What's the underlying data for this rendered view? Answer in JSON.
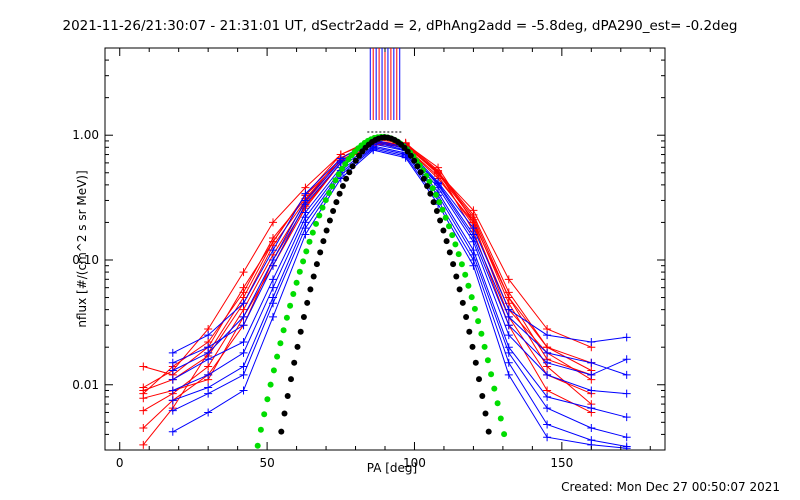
{
  "title": "2021-11-26/21:30:07 - 21:31:01 UT, dSectr2add = 2, dPhAng2add = -5.8deg, dPA290_est= -0.2deg",
  "footer": "Created: Mon Dec 27 00:50:07 2021",
  "chart_data": {
    "type": "line",
    "xlabel": "PA [deg]",
    "ylabel": "nflux [#/(cm^2 s sr MeV)]",
    "xlim": [
      -5,
      185
    ],
    "ylim": [
      0.003,
      5.0
    ],
    "yscale": "log",
    "x_ticks": [
      0,
      50,
      100,
      150
    ],
    "y_ticks": [
      {
        "value": 1.0,
        "label": "1.00"
      },
      {
        "value": 0.1,
        "label": "0.10"
      },
      {
        "value": 0.01,
        "label": "0.01"
      }
    ],
    "peak_markers": {
      "red_x": [
        86,
        88,
        90,
        92,
        94
      ],
      "blue_x": [
        85,
        87,
        89,
        91,
        93,
        95
      ]
    },
    "fit_curves": [
      {
        "name": "green fit",
        "color": "#00dd00",
        "peak": 0.97,
        "center": 89,
        "width": 27.5,
        "x_start": 27,
        "x_end": 143
      },
      {
        "name": "black fit",
        "color": "#000000",
        "peak": 0.96,
        "center": 90,
        "width": 23.5,
        "x_start": 35,
        "x_end": 150
      }
    ],
    "series": [
      {
        "name": "red-1",
        "color": "#ff0000",
        "x": [
          8,
          18,
          30,
          42,
          52,
          63,
          75,
          86,
          97,
          108,
          120,
          132,
          145,
          160
        ],
        "y": [
          0.014,
          0.012,
          0.02,
          0.06,
          0.14,
          0.33,
          0.7,
          0.9,
          0.82,
          0.5,
          0.22,
          0.05,
          0.02,
          0.015
        ]
      },
      {
        "name": "red-2",
        "color": "#ff0000",
        "x": [
          8,
          18,
          30,
          42,
          52,
          63,
          75,
          86,
          97,
          108,
          120,
          132,
          145,
          160
        ],
        "y": [
          0.009,
          0.011,
          0.017,
          0.045,
          0.13,
          0.3,
          0.66,
          0.88,
          0.85,
          0.55,
          0.2,
          0.035,
          0.012,
          0.0085
        ]
      },
      {
        "name": "red-3",
        "color": "#ff0000",
        "x": [
          8,
          18,
          30,
          42,
          52,
          63,
          75,
          86,
          97,
          108,
          120,
          132,
          145,
          160
        ],
        "y": [
          0.0062,
          0.0085,
          0.014,
          0.04,
          0.11,
          0.29,
          0.63,
          0.86,
          0.8,
          0.47,
          0.19,
          0.04,
          0.018,
          0.011
        ]
      },
      {
        "name": "red-4",
        "color": "#ff0000",
        "x": [
          8,
          18,
          30,
          42,
          52,
          63,
          75,
          86,
          97,
          108,
          120,
          132,
          145,
          160
        ],
        "y": [
          0.0045,
          0.0075,
          0.012,
          0.03,
          0.1,
          0.27,
          0.6,
          0.85,
          0.87,
          0.52,
          0.17,
          0.03,
          0.009,
          0.006
        ]
      },
      {
        "name": "red-5",
        "color": "#ff0000",
        "x": [
          8,
          18,
          30,
          42,
          52,
          63,
          75,
          86,
          97,
          108,
          120,
          132,
          145,
          160
        ],
        "y": [
          0.0095,
          0.013,
          0.028,
          0.08,
          0.2,
          0.38,
          0.7,
          0.93,
          0.86,
          0.5,
          0.25,
          0.07,
          0.028,
          0.02
        ]
      },
      {
        "name": "red-6",
        "color": "#ff0000",
        "x": [
          8,
          18,
          30,
          42,
          52,
          63,
          75,
          86,
          97,
          108,
          120,
          132,
          145,
          160
        ],
        "y": [
          0.0033,
          0.0065,
          0.018,
          0.05,
          0.14,
          0.33,
          0.62,
          0.89,
          0.8,
          0.45,
          0.2,
          0.05,
          0.016,
          0.012
        ]
      },
      {
        "name": "red-7",
        "color": "#ff0000",
        "x": [
          8,
          18,
          30,
          42,
          52,
          63,
          75,
          86,
          97,
          108,
          120,
          132,
          145,
          160
        ],
        "y": [
          0.0078,
          0.009,
          0.011,
          0.035,
          0.09,
          0.26,
          0.6,
          0.84,
          0.83,
          0.49,
          0.21,
          0.045,
          0.014,
          0.007
        ]
      },
      {
        "name": "red-8",
        "color": "#ff0000",
        "x": [
          8,
          18,
          30,
          42,
          52,
          63,
          75,
          86,
          97,
          108,
          120,
          132,
          145,
          160
        ],
        "y": [
          0.0085,
          0.014,
          0.022,
          0.055,
          0.15,
          0.31,
          0.65,
          0.9,
          0.84,
          0.51,
          0.23,
          0.055,
          0.02,
          0.013
        ]
      },
      {
        "name": "blue-1",
        "color": "#0000ff",
        "x": [
          18,
          30,
          42,
          52,
          63,
          75,
          86,
          97,
          108,
          120,
          132,
          145,
          160,
          172
        ],
        "y": [
          0.018,
          0.025,
          0.045,
          0.12,
          0.34,
          0.65,
          0.92,
          0.8,
          0.42,
          0.18,
          0.04,
          0.025,
          0.022,
          0.024
        ]
      },
      {
        "name": "blue-2",
        "color": "#0000ff",
        "x": [
          18,
          30,
          42,
          52,
          63,
          75,
          86,
          97,
          108,
          120,
          132,
          145,
          160,
          172
        ],
        "y": [
          0.015,
          0.02,
          0.03,
          0.09,
          0.28,
          0.6,
          0.9,
          0.78,
          0.4,
          0.15,
          0.03,
          0.015,
          0.012,
          0.016
        ]
      },
      {
        "name": "blue-3",
        "color": "#0000ff",
        "x": [
          18,
          30,
          42,
          52,
          63,
          75,
          86,
          97,
          108,
          120,
          132,
          145,
          160,
          172
        ],
        "y": [
          0.011,
          0.016,
          0.022,
          0.07,
          0.24,
          0.55,
          0.85,
          0.75,
          0.38,
          0.14,
          0.025,
          0.012,
          0.009,
          0.0085
        ]
      },
      {
        "name": "blue-4",
        "color": "#0000ff",
        "x": [
          18,
          30,
          42,
          52,
          63,
          75,
          86,
          97,
          108,
          120,
          132,
          145,
          160,
          172
        ],
        "y": [
          0.009,
          0.012,
          0.018,
          0.06,
          0.22,
          0.52,
          0.82,
          0.72,
          0.35,
          0.12,
          0.02,
          0.008,
          0.0065,
          0.0055
        ]
      },
      {
        "name": "blue-5",
        "color": "#0000ff",
        "x": [
          18,
          30,
          42,
          52,
          63,
          75,
          86,
          97,
          108,
          120,
          132,
          145,
          160,
          172
        ],
        "y": [
          0.0075,
          0.0095,
          0.014,
          0.05,
          0.2,
          0.5,
          0.8,
          0.7,
          0.33,
          0.11,
          0.018,
          0.0065,
          0.0045,
          0.0038
        ]
      },
      {
        "name": "blue-6",
        "color": "#0000ff",
        "x": [
          18,
          30,
          42,
          52,
          63,
          75,
          86,
          97,
          108,
          120,
          132,
          145,
          160,
          172
        ],
        "y": [
          0.0062,
          0.0085,
          0.012,
          0.045,
          0.18,
          0.48,
          0.78,
          0.68,
          0.3,
          0.1,
          0.015,
          0.0048,
          0.0036,
          0.0032
        ]
      },
      {
        "name": "blue-7",
        "color": "#0000ff",
        "x": [
          18,
          30,
          42,
          52,
          63,
          75,
          86,
          97,
          108,
          120,
          132,
          145,
          160,
          172
        ],
        "y": [
          0.0042,
          0.006,
          0.009,
          0.035,
          0.16,
          0.45,
          0.76,
          0.66,
          0.28,
          0.09,
          0.012,
          0.0038,
          0.0033,
          0.0031
        ]
      },
      {
        "name": "blue-8",
        "color": "#0000ff",
        "x": [
          18,
          30,
          42,
          52,
          63,
          75,
          86,
          97,
          108,
          120,
          132,
          145,
          160,
          172
        ],
        "y": [
          0.013,
          0.018,
          0.035,
          0.1,
          0.3,
          0.62,
          0.88,
          0.76,
          0.41,
          0.16,
          0.035,
          0.018,
          0.015,
          0.012
        ]
      }
    ]
  }
}
